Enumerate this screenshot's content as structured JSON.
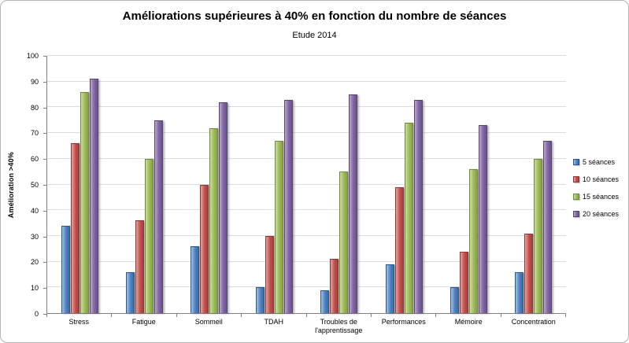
{
  "chart_data": {
    "type": "bar",
    "title": "Améliorations  supérieures à 40% en fonction du nombre de séances",
    "subtitle": "Etude 2014",
    "ylabel": "Amélioration >40%",
    "xlabel": "",
    "ylim": [
      0,
      100
    ],
    "ytick_step": 10,
    "grid": true,
    "legend_position": "right",
    "categories": [
      "Stress",
      "Fatigue",
      "Sommeil",
      "TDAH",
      "Troubles de l'apprentissage",
      "Performances",
      "Mémoire",
      "Concentration"
    ],
    "series": [
      {
        "name": "5 séances",
        "color": "#4F81BD",
        "color_light": "#9DC3E6",
        "color_dark": "#3A6BA8",
        "border": "#2E5688",
        "values": [
          34,
          16,
          26,
          10,
          9,
          19,
          10,
          16
        ]
      },
      {
        "name": "10 séances",
        "color": "#C0504D",
        "color_light": "#E2A5A3",
        "color_dark": "#A53F3C",
        "border": "#8E3734",
        "values": [
          66,
          36,
          50,
          30,
          21,
          49,
          24,
          31
        ]
      },
      {
        "name": "15 séances",
        "color": "#9BBB59",
        "color_light": "#CCDCA0",
        "color_dark": "#83A144",
        "border": "#71893A",
        "values": [
          86,
          60,
          72,
          67,
          55,
          74,
          56,
          60
        ]
      },
      {
        "name": "20 séances",
        "color": "#8064A2",
        "color_light": "#B8A9CB",
        "color_dark": "#6B5291",
        "border": "#5B456F",
        "values": [
          91,
          75,
          82,
          83,
          85,
          83,
          73,
          67
        ]
      }
    ]
  }
}
